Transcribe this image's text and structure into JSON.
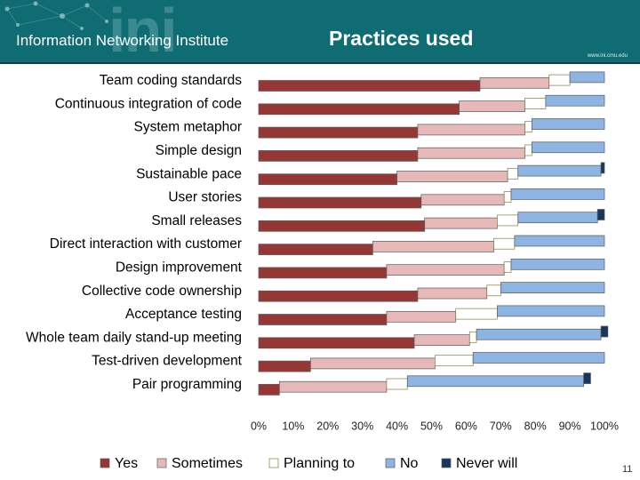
{
  "header": {
    "org_name": "Information Networking Institute",
    "logo_text": "ini",
    "title": "Practices used",
    "url": "www.ini.cmu.edu"
  },
  "chart_data": {
    "type": "bar",
    "orientation": "horizontal",
    "stacked": true,
    "percent": true,
    "title": "Practices used",
    "categories": [
      "Team coding standards",
      "Continuous integration of code",
      "System metaphor",
      "Simple design",
      "Sustainable pace",
      "User stories",
      "Small releases",
      "Direct interaction with customer",
      "Design improvement",
      "Collective code ownership",
      "Acceptance testing",
      "Whole team daily stand-up meeting",
      "Test-driven development",
      "Pair programming"
    ],
    "series": [
      {
        "name": "Yes",
        "color": "#953735",
        "values": [
          64,
          58,
          46,
          46,
          40,
          47,
          48,
          33,
          37,
          46,
          37,
          45,
          15,
          6
        ]
      },
      {
        "name": "Sometimes",
        "color": "#e6b9b8",
        "values": [
          20,
          19,
          31,
          31,
          32,
          24,
          21,
          35,
          34,
          20,
          20,
          16,
          36,
          31
        ]
      },
      {
        "name": "Planning to",
        "color": "#ffffff",
        "values": [
          6,
          6,
          2,
          2,
          3,
          2,
          6,
          6,
          2,
          4,
          12,
          2,
          11,
          6
        ]
      },
      {
        "name": "No",
        "color": "#8db4e2",
        "values": [
          10,
          17,
          21,
          21,
          24,
          27,
          23,
          26,
          27,
          30,
          31,
          36,
          38,
          51
        ]
      },
      {
        "name": "Never will",
        "color": "#17375e",
        "values": [
          0,
          0,
          0,
          0,
          1,
          0,
          2,
          0,
          0,
          0,
          0,
          2,
          0,
          2
        ]
      }
    ],
    "xlim": [
      0,
      100
    ],
    "xticks": [
      "0%",
      "10%",
      "20%",
      "30%",
      "40%",
      "50%",
      "60%",
      "70%",
      "80%",
      "90%",
      "100%"
    ],
    "legend": "bottom",
    "grid": false
  },
  "page_number": "11"
}
